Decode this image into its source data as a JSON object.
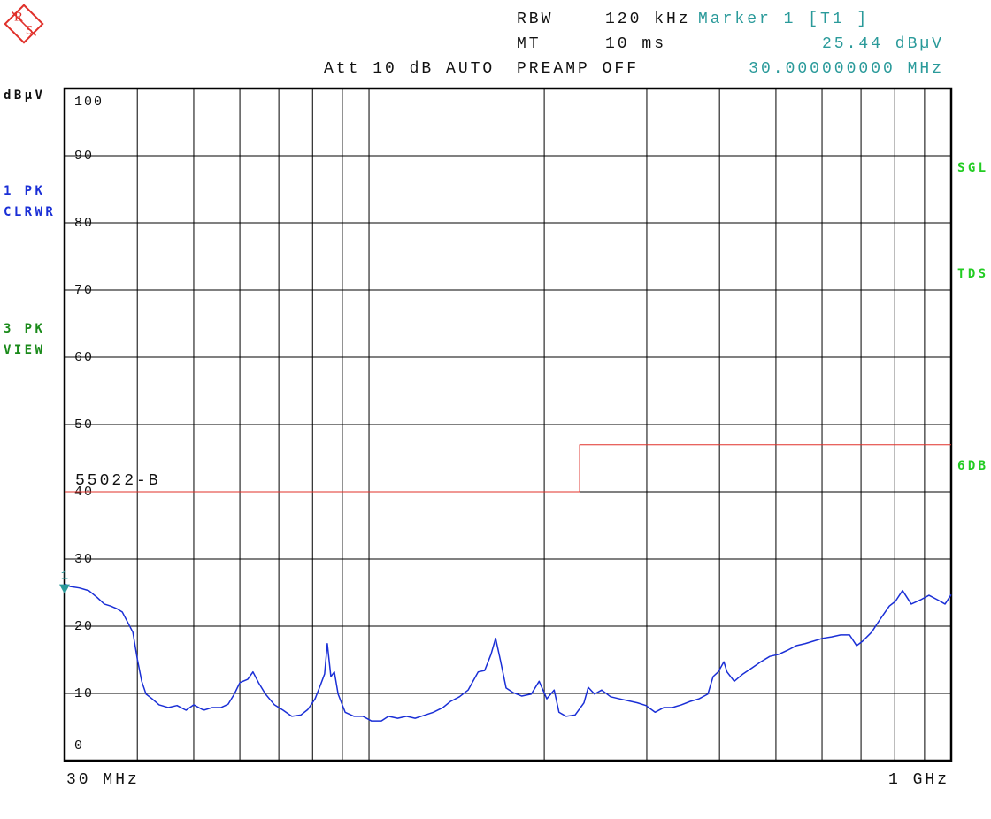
{
  "chart_data": {
    "type": "line",
    "logo": [
      "R",
      "S"
    ],
    "header": {
      "rbw_label": "RBW",
      "rbw": "120 kHz",
      "mt_label": "MT",
      "mt": "10 ms",
      "att": "Att 10 dB AUTO",
      "preamp": "PREAMP OFF"
    },
    "y_unit": "dBµV",
    "trace_labels": [
      {
        "lines": [
          "1 PK",
          "CLRWR"
        ],
        "color": "#1a2fd6"
      },
      {
        "lines": [
          "3 PK",
          "VIEW"
        ],
        "color": "#1a8a1a"
      }
    ],
    "status_labels": [
      "SGL",
      "TDS",
      "6DB"
    ],
    "status_color": "#22cc22",
    "xscale": "log",
    "xlim": [
      30,
      1000
    ],
    "xticks": [
      {
        "value": 30,
        "label": "30 MHz"
      },
      {
        "value": 1000,
        "label": "1 GHz"
      }
    ],
    "xgrid": [
      40,
      50,
      60,
      70,
      80,
      90,
      100,
      200,
      300,
      400,
      500,
      600,
      700,
      800,
      900
    ],
    "ylim": [
      0,
      100
    ],
    "yticks": [
      0,
      10,
      20,
      30,
      40,
      50,
      60,
      70,
      80,
      90,
      100
    ],
    "grid": true,
    "series": [
      {
        "color": "#1a2fd6",
        "x": [
          30,
          30.7,
          31.8,
          33.0,
          34.1,
          35.1,
          36.0,
          36.9,
          37.7,
          38.6,
          39.3,
          40.0,
          40.7,
          41.4,
          42.4,
          43.6,
          45.2,
          46.8,
          48.5,
          50,
          52.0,
          53.8,
          55.7,
          57.3,
          58.7,
          60,
          61.9,
          63.2,
          64.6,
          66.4,
          68.8,
          71.2,
          73.7,
          76.4,
          78.5,
          80.8,
          82.5,
          83.9,
          84.8,
          86.0,
          87.2,
          88.5,
          91.0,
          94.2,
          97.6,
          101,
          105,
          108,
          112,
          116,
          120,
          125,
          129,
          134,
          138,
          143,
          148,
          154,
          158,
          162,
          165,
          168,
          172,
          177,
          183,
          190,
          196,
          202,
          208,
          212,
          218,
          226,
          234,
          238,
          244,
          251,
          260,
          269,
          279,
          289,
          299,
          310,
          321,
          332,
          344,
          356,
          369,
          382,
          390,
          398,
          407,
          412,
          424,
          439,
          455,
          471,
          488,
          505,
          523,
          542,
          561,
          581,
          602,
          623,
          646,
          669,
          688,
          705,
          730,
          756,
          783,
          802,
          825,
          854,
          885,
          916,
          949,
          976,
          1000
        ],
        "values": [
          26.3,
          25.9,
          25.7,
          25.3,
          24.3,
          23.3,
          23.0,
          22.6,
          22.1,
          20.4,
          19.1,
          15.1,
          11.8,
          9.9,
          9.2,
          8.3,
          7.9,
          8.2,
          7.5,
          8.3,
          7.5,
          7.9,
          7.9,
          8.4,
          9.9,
          11.6,
          12.1,
          13.2,
          11.6,
          9.9,
          8.3,
          7.5,
          6.6,
          6.8,
          7.6,
          9.2,
          11.2,
          12.9,
          17.4,
          12.5,
          13.2,
          9.9,
          7.2,
          6.6,
          6.6,
          5.9,
          5.9,
          6.6,
          6.3,
          6.6,
          6.3,
          6.8,
          7.2,
          7.9,
          8.8,
          9.5,
          10.5,
          13.2,
          13.4,
          15.8,
          18.2,
          15.1,
          10.8,
          10.1,
          9.6,
          9.9,
          11.8,
          9.2,
          10.5,
          7.2,
          6.6,
          6.8,
          8.6,
          10.9,
          9.9,
          10.5,
          9.5,
          9.2,
          8.9,
          8.6,
          8.2,
          7.2,
          7.9,
          7.9,
          8.3,
          8.8,
          9.2,
          9.9,
          12.5,
          13.2,
          14.7,
          13.2,
          11.8,
          12.9,
          13.8,
          14.7,
          15.5,
          15.8,
          16.4,
          17.1,
          17.4,
          17.8,
          18.2,
          18.4,
          18.7,
          18.7,
          17.1,
          17.8,
          19.1,
          21.1,
          23.0,
          23.7,
          25.3,
          23.3,
          23.9,
          24.6,
          23.9,
          23.3,
          24.7
        ]
      }
    ],
    "limit": {
      "name": "55022-B",
      "color": "#e0302a",
      "x": [
        30,
        230,
        230,
        1000
      ],
      "values": [
        40,
        40,
        47,
        47
      ]
    },
    "marker": {
      "name": "Marker 1 [T1 ]",
      "label": "1",
      "color": "#2a9a9a",
      "x": {
        "value": 30,
        "label": "30.000000000 MHz"
      },
      "value": {
        "value": 25.44,
        "label": "25.44 dBµV"
      }
    }
  }
}
